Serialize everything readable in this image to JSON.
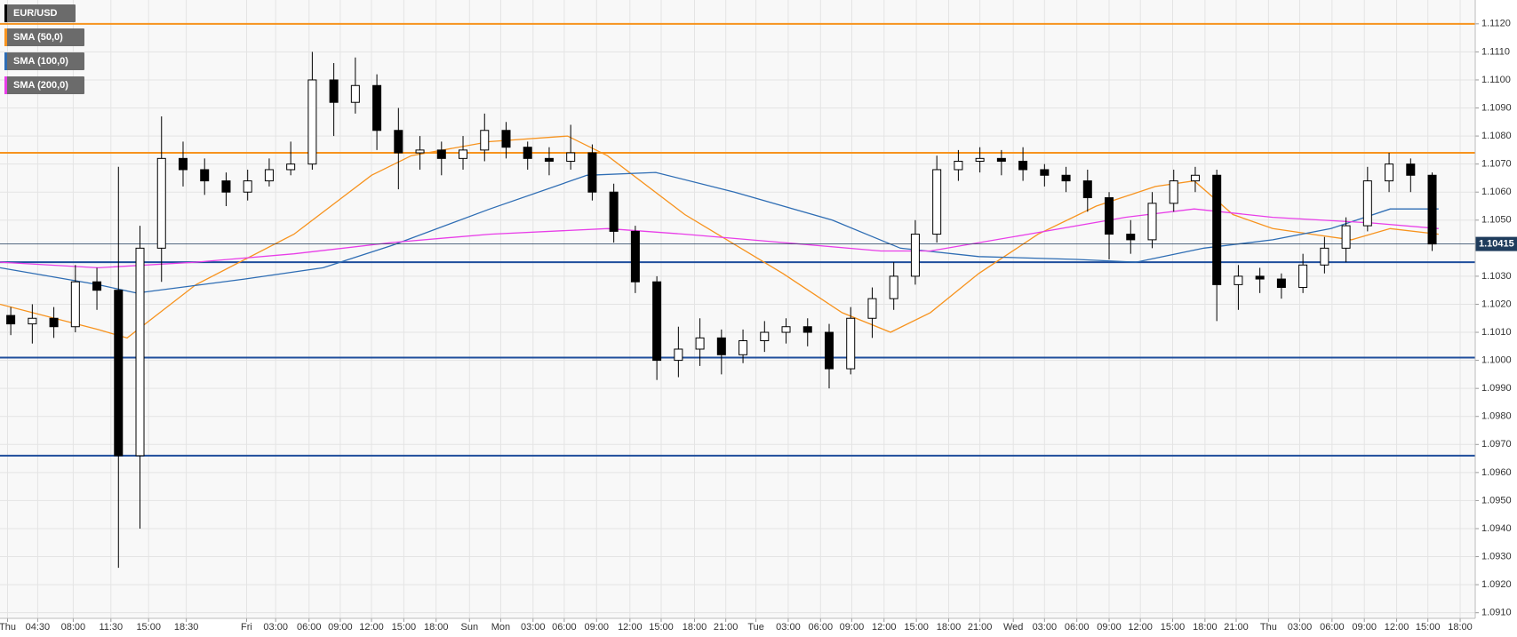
{
  "chart_data": {
    "type": "candlestick",
    "candles": {
      "name": "EUR/USD",
      "up_color": "#ffffff",
      "down_color": "#000000",
      "x": [
        1,
        3,
        5,
        7,
        9,
        11,
        13,
        15,
        17,
        19,
        21,
        23,
        25,
        27,
        29,
        31,
        33,
        35,
        37,
        39,
        41,
        43,
        45,
        47,
        49,
        51,
        53,
        55,
        57,
        59,
        61,
        63,
        65,
        67,
        69,
        71,
        73,
        75,
        77,
        79,
        81,
        83,
        85,
        87,
        89,
        91,
        93,
        95,
        97,
        99,
        101,
        103,
        105,
        107,
        109,
        111,
        113,
        115,
        117,
        119,
        121,
        123,
        125,
        127,
        129,
        131,
        133
      ],
      "open": [
        1.1016,
        1.1013,
        1.1015,
        1.1012,
        1.1028,
        1.1025,
        1.0966,
        1.104,
        1.1072,
        1.1068,
        1.1064,
        1.106,
        1.1064,
        1.1068,
        1.107,
        1.11,
        1.1092,
        1.1098,
        1.1082,
        1.1074,
        1.1075,
        1.1072,
        1.1075,
        1.1082,
        1.1076,
        1.1072,
        1.1071,
        1.1074,
        1.106,
        1.1046,
        1.1028,
        1.1,
        1.1004,
        1.1008,
        1.1002,
        1.1007,
        1.101,
        1.1012,
        1.101,
        1.0997,
        1.1015,
        1.1022,
        1.103,
        1.1045,
        1.1068,
        1.1071,
        1.1072,
        1.1071,
        1.1068,
        1.1066,
        1.1064,
        1.1058,
        1.1045,
        1.1043,
        1.1056,
        1.1064,
        1.1066,
        1.1027,
        1.103,
        1.1029,
        1.1026,
        1.1034,
        1.104,
        1.1048,
        1.1064,
        1.107,
        1.1066
      ],
      "high": [
        1.1019,
        1.102,
        1.1019,
        1.1034,
        1.1033,
        1.1069,
        1.1048,
        1.1087,
        1.1078,
        1.1072,
        1.1067,
        1.1068,
        1.1072,
        1.1078,
        1.111,
        1.1106,
        1.1108,
        1.1102,
        1.109,
        1.108,
        1.1078,
        1.108,
        1.1088,
        1.1085,
        1.1078,
        1.1076,
        1.1084,
        1.1077,
        1.1063,
        1.1048,
        1.103,
        1.1012,
        1.1015,
        1.1011,
        1.1011,
        1.1014,
        1.1015,
        1.1015,
        1.1013,
        1.1019,
        1.1026,
        1.1035,
        1.105,
        1.1073,
        1.1075,
        1.1076,
        1.1075,
        1.1076,
        1.107,
        1.1069,
        1.1068,
        1.106,
        1.105,
        1.106,
        1.1068,
        1.1069,
        1.1068,
        1.1034,
        1.1033,
        1.1031,
        1.1038,
        1.1044,
        1.1051,
        1.1069,
        1.1074,
        1.1072,
        1.1067
      ],
      "low": [
        1.1009,
        1.1006,
        1.1008,
        1.101,
        1.1018,
        1.0926,
        1.094,
        1.1028,
        1.1062,
        1.1059,
        1.1055,
        1.1057,
        1.1062,
        1.1066,
        1.1068,
        1.108,
        1.1088,
        1.1075,
        1.1061,
        1.1068,
        1.1066,
        1.1068,
        1.1071,
        1.1072,
        1.1068,
        1.1066,
        1.1068,
        1.1057,
        1.1042,
        1.1024,
        1.0993,
        1.0994,
        1.0998,
        1.0995,
        1.0999,
        1.1003,
        1.1006,
        1.1005,
        1.099,
        1.0995,
        1.1008,
        1.1018,
        1.1027,
        1.1042,
        1.1064,
        1.1067,
        1.1066,
        1.1064,
        1.1062,
        1.106,
        1.1053,
        1.1036,
        1.1038,
        1.104,
        1.1053,
        1.106,
        1.1014,
        1.1018,
        1.1024,
        1.1022,
        1.1024,
        1.1031,
        1.1035,
        1.1046,
        1.106,
        1.106,
        1.1039
      ],
      "close": [
        1.1013,
        1.1015,
        1.1012,
        1.1028,
        1.1025,
        1.0966,
        1.104,
        1.1072,
        1.1068,
        1.1064,
        1.106,
        1.1064,
        1.1068,
        1.107,
        1.11,
        1.1092,
        1.1098,
        1.1082,
        1.1074,
        1.1075,
        1.1072,
        1.1075,
        1.1082,
        1.1076,
        1.1072,
        1.1071,
        1.1074,
        1.106,
        1.1046,
        1.1028,
        1.1,
        1.1004,
        1.1008,
        1.1002,
        1.1007,
        1.101,
        1.1012,
        1.101,
        1.0997,
        1.1015,
        1.1022,
        1.103,
        1.1045,
        1.1068,
        1.1071,
        1.1072,
        1.1071,
        1.1068,
        1.1066,
        1.1064,
        1.1058,
        1.1045,
        1.1043,
        1.1056,
        1.1064,
        1.1066,
        1.1027,
        1.103,
        1.1029,
        1.1026,
        1.1034,
        1.104,
        1.1048,
        1.1064,
        1.107,
        1.1066,
        1.10415
      ]
    },
    "sma": [
      {
        "name": "SMA (50,0)",
        "color": "#f7931e",
        "x": [
          0,
          9.1,
          11.8,
          18.2,
          27.3,
          34.5,
          38.2,
          45.5,
          52.7,
          56.4,
          63.6,
          72.7,
          78.2,
          82.7,
          86.4,
          90.9,
          96.4,
          101.8,
          107.3,
          110.9,
          114.5,
          118.2,
          121.8,
          125.5,
          129.1,
          133.6
        ],
        "values": [
          1.102,
          1.1011,
          1.1008,
          1.1027,
          1.1045,
          1.1066,
          1.1073,
          1.1078,
          1.108,
          1.1073,
          1.1052,
          1.1031,
          1.1017,
          1.101,
          1.1017,
          1.1031,
          1.1045,
          1.1055,
          1.1062,
          1.1064,
          1.1052,
          1.1047,
          1.1045,
          1.1043,
          1.1047,
          1.1045
        ]
      },
      {
        "name": "SMA (100,0)",
        "color": "#2e6db4",
        "x": [
          0,
          9.1,
          12.7,
          22.7,
          30,
          36.4,
          45.5,
          54.5,
          60.9,
          68.2,
          77.3,
          83.6,
          90.9,
          100,
          105.5,
          111.8,
          118.2,
          123.6,
          129.1,
          133.6
        ],
        "values": [
          1.1033,
          1.1027,
          1.1024,
          1.1029,
          1.1033,
          1.1041,
          1.1054,
          1.1066,
          1.1067,
          1.106,
          1.105,
          1.104,
          1.1037,
          1.1036,
          1.1035,
          1.104,
          1.1043,
          1.1047,
          1.1054,
          1.1054
        ]
      },
      {
        "name": "SMA (200,0)",
        "color": "#e83ee8",
        "x": [
          0,
          9.1,
          18.2,
          27.3,
          36.4,
          45.5,
          56.4,
          63.6,
          72.7,
          81.8,
          86.4,
          95.5,
          104.5,
          110.9,
          118.2,
          127.3,
          133.6
        ],
        "values": [
          1.1035,
          1.1033,
          1.1035,
          1.1038,
          1.1042,
          1.1045,
          1.1047,
          1.1045,
          1.1042,
          1.1039,
          1.1039,
          1.1045,
          1.1051,
          1.1054,
          1.1051,
          1.1049,
          1.1047
        ]
      }
    ],
    "horizontal_lines": [
      {
        "value": 1.112,
        "color": "#f7931e"
      },
      {
        "value": 1.1074,
        "color": "#f7931e"
      },
      {
        "value": 1.1035,
        "color": "#1f4e9c"
      },
      {
        "value": 1.1001,
        "color": "#1f4e9c"
      },
      {
        "value": 1.0966,
        "color": "#1f4e9c"
      }
    ],
    "xlim": [
      0,
      137
    ],
    "ylim": [
      1.0908,
      1.11285
    ],
    "grid": true,
    "xticks": [
      {
        "value": 0.7,
        "label": "Thu"
      },
      {
        "value": 3.5,
        "label": "04:30"
      },
      {
        "value": 6.8,
        "label": "08:00"
      },
      {
        "value": 10.3,
        "label": "11:30"
      },
      {
        "value": 13.8,
        "label": "15:00"
      },
      {
        "value": 17.3,
        "label": "18:30"
      },
      {
        "value": 22.9,
        "label": "Fri"
      },
      {
        "value": 25.6,
        "label": "03:00"
      },
      {
        "value": 28.7,
        "label": "06:00"
      },
      {
        "value": 31.6,
        "label": "09:00"
      },
      {
        "value": 34.5,
        "label": "12:00"
      },
      {
        "value": 37.5,
        "label": "15:00"
      },
      {
        "value": 40.5,
        "label": "18:00"
      },
      {
        "value": 43.6,
        "label": "Sun"
      },
      {
        "value": 46.5,
        "label": "Mon"
      },
      {
        "value": 49.5,
        "label": "03:00"
      },
      {
        "value": 52.4,
        "label": "06:00"
      },
      {
        "value": 55.4,
        "label": "09:00"
      },
      {
        "value": 58.5,
        "label": "12:00"
      },
      {
        "value": 61.4,
        "label": "15:00"
      },
      {
        "value": 64.5,
        "label": "18:00"
      },
      {
        "value": 67.4,
        "label": "21:00"
      },
      {
        "value": 70.2,
        "label": "Tue"
      },
      {
        "value": 73.2,
        "label": "03:00"
      },
      {
        "value": 76.2,
        "label": "06:00"
      },
      {
        "value": 79.1,
        "label": "09:00"
      },
      {
        "value": 82.1,
        "label": "12:00"
      },
      {
        "value": 85.1,
        "label": "15:00"
      },
      {
        "value": 88.1,
        "label": "18:00"
      },
      {
        "value": 91,
        "label": "21:00"
      },
      {
        "value": 94.1,
        "label": "Wed"
      },
      {
        "value": 97,
        "label": "03:00"
      },
      {
        "value": 100,
        "label": "06:00"
      },
      {
        "value": 103,
        "label": "09:00"
      },
      {
        "value": 105.9,
        "label": "12:00"
      },
      {
        "value": 108.9,
        "label": "15:00"
      },
      {
        "value": 111.9,
        "label": "18:00"
      },
      {
        "value": 114.8,
        "label": "21:00"
      },
      {
        "value": 117.8,
        "label": "Thu"
      },
      {
        "value": 120.7,
        "label": "03:00"
      },
      {
        "value": 123.7,
        "label": "06:00"
      },
      {
        "value": 126.7,
        "label": "09:00"
      },
      {
        "value": 129.7,
        "label": "12:00"
      },
      {
        "value": 132.6,
        "label": "15:00"
      },
      {
        "value": 135.6,
        "label": "18:00"
      }
    ],
    "yticks": [
      {
        "value": 1.091,
        "label": "1.0910"
      },
      {
        "value": 1.092,
        "label": "1.0920"
      },
      {
        "value": 1.093,
        "label": "1.0930"
      },
      {
        "value": 1.094,
        "label": "1.0940"
      },
      {
        "value": 1.095,
        "label": "1.0950"
      },
      {
        "value": 1.096,
        "label": "1.0960"
      },
      {
        "value": 1.097,
        "label": "1.0970"
      },
      {
        "value": 1.098,
        "label": "1.0980"
      },
      {
        "value": 1.099,
        "label": "1.0990"
      },
      {
        "value": 1.1,
        "label": "1.1000"
      },
      {
        "value": 1.101,
        "label": "1.1010"
      },
      {
        "value": 1.102,
        "label": "1.1020"
      },
      {
        "value": 1.103,
        "label": "1.1030"
      },
      {
        "value": 1.105,
        "label": "1.1050"
      },
      {
        "value": 1.106,
        "label": "1.1060"
      },
      {
        "value": 1.107,
        "label": "1.1070"
      },
      {
        "value": 1.108,
        "label": "1.1080"
      },
      {
        "value": 1.109,
        "label": "1.1090"
      },
      {
        "value": 1.11,
        "label": "1.1100"
      },
      {
        "value": 1.111,
        "label": "1.1110"
      },
      {
        "value": 1.112,
        "label": "1.1120"
      }
    ]
  }
}
